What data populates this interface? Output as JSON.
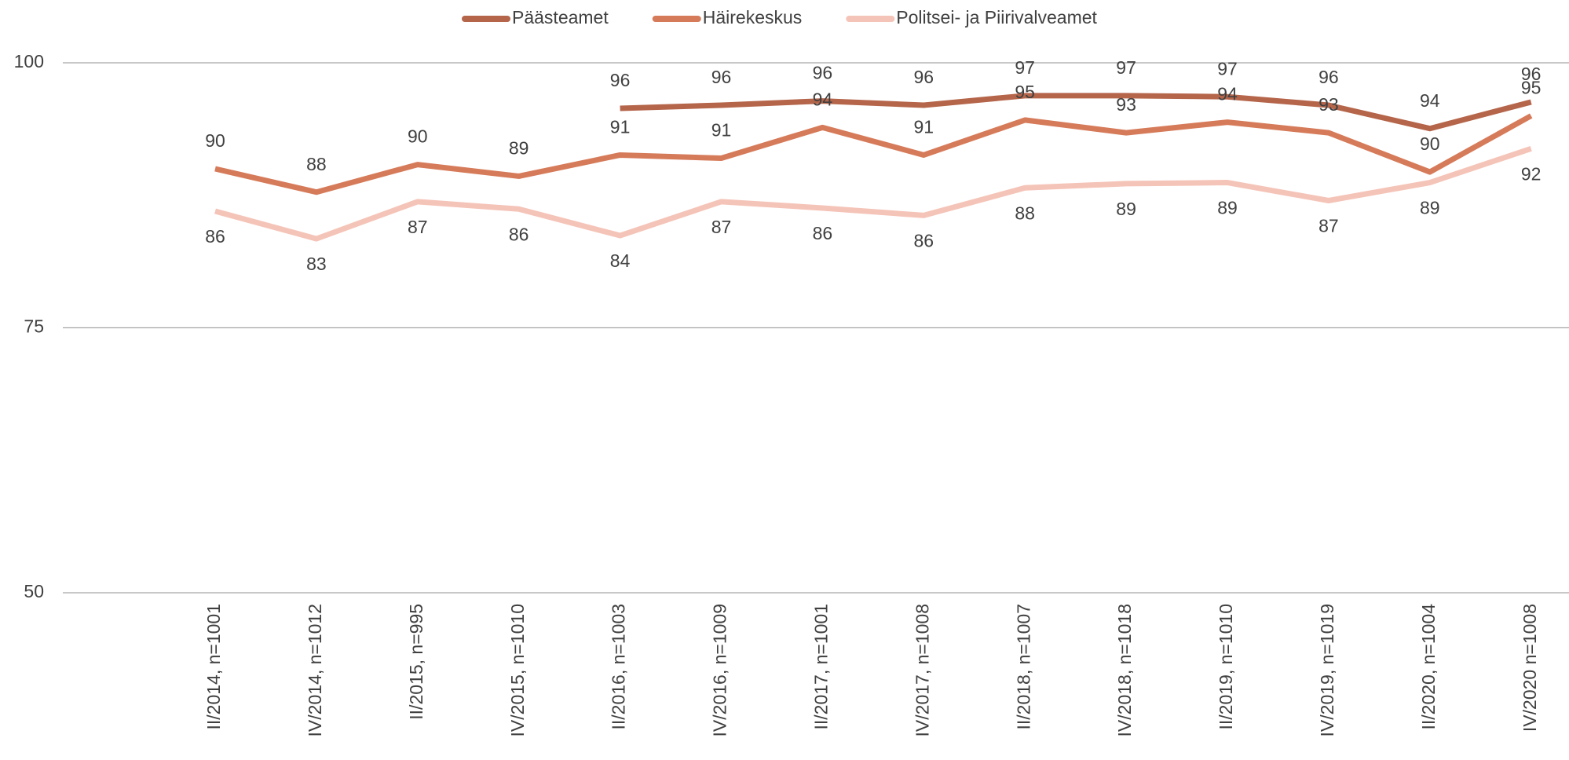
{
  "chart_data": {
    "type": "line",
    "categories": [
      "II/2014, n=1001",
      "IV/2014, n=1012",
      "II/2015, n=995",
      "IV/2015, n=1010",
      "II/2016, n=1003",
      "IV/2016, n=1009",
      "II/2017, n=1001",
      "IV/2017, n=1008",
      "II/2018, n=1007",
      "IV/2018, n=1018",
      "II/2019, n=1010",
      "IV/2019, n=1019",
      "II/2020, n=1004",
      "IV/2020 n=1008"
    ],
    "series": [
      {
        "name": "Päästeamet",
        "color": "#b5654a",
        "label_side": "above",
        "values": [
          null,
          null,
          null,
          null,
          95.7,
          96.0,
          96.4,
          96.0,
          96.9,
          96.9,
          96.8,
          96.0,
          93.8,
          96.3
        ],
        "value_labels": [
          null,
          null,
          null,
          null,
          "96",
          "96",
          "96",
          "96",
          "97",
          "97",
          "97",
          "96",
          "94",
          "96"
        ]
      },
      {
        "name": "Häirekeskus",
        "color": "#d67b5a",
        "label_side": "above",
        "values": [
          90.0,
          87.8,
          90.4,
          89.3,
          91.3,
          91.0,
          93.9,
          91.3,
          94.6,
          93.4,
          94.4,
          93.4,
          89.7,
          95.0
        ],
        "value_labels": [
          "90",
          "88",
          "90",
          "89",
          "91",
          "91",
          "94",
          "91",
          "95",
          "93",
          "94",
          "93",
          "90",
          "95"
        ]
      },
      {
        "name": "Politsei- ja Piirivalveamet",
        "color": "#f5c4b8",
        "label_side": "below",
        "values": [
          86.0,
          83.4,
          86.9,
          86.2,
          83.7,
          86.9,
          86.3,
          85.6,
          88.2,
          88.6,
          88.7,
          87.0,
          88.7,
          91.9
        ],
        "value_labels": [
          "86",
          "83",
          "87",
          "86",
          "84",
          "87",
          "86",
          "86",
          "88",
          "89",
          "89",
          "87",
          "89",
          "92"
        ]
      }
    ],
    "ylim": [
      50,
      100
    ],
    "yticks": [
      50,
      75,
      100
    ],
    "grid": true,
    "legend": "top"
  }
}
